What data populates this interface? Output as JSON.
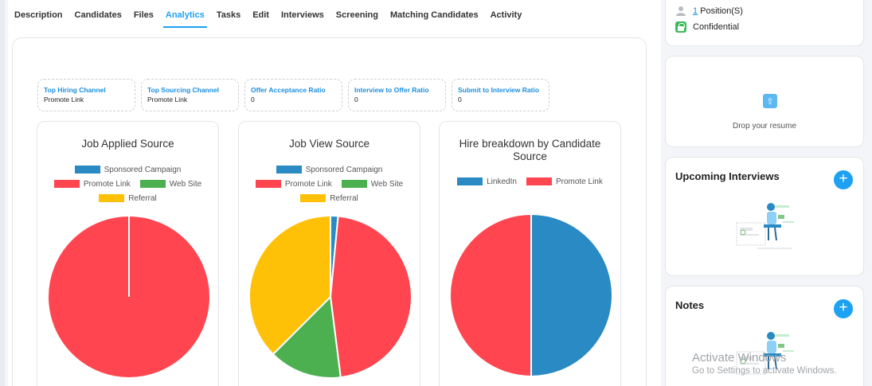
{
  "tabs": [
    {
      "label": "Description"
    },
    {
      "label": "Candidates"
    },
    {
      "label": "Files"
    },
    {
      "label": "Analytics"
    },
    {
      "label": "Tasks"
    },
    {
      "label": "Edit"
    },
    {
      "label": "Interviews"
    },
    {
      "label": "Screening"
    },
    {
      "label": "Matching Candidates"
    },
    {
      "label": "Activity"
    }
  ],
  "active_tab": "Analytics",
  "metrics": [
    {
      "label": "Top Hiring Channel",
      "value": "Promote Link"
    },
    {
      "label": "Top Sourcing Channel",
      "value": "Promote Link"
    },
    {
      "label": "Offer Acceptance Ratio",
      "value": "0"
    },
    {
      "label": "Interview to Offer Ratio",
      "value": "0"
    },
    {
      "label": "Submit to Interview Ratio",
      "value": "0"
    }
  ],
  "sidebar": {
    "position_count": "1",
    "position_label": "Position(S)",
    "confidential_label": "Confidential",
    "drop_resume_label": "Drop your resume",
    "upcoming_interviews_title": "Upcoming Interviews",
    "notes_title": "Notes",
    "add_label": "+"
  },
  "watermark": {
    "line1": "Activate Windows",
    "line2": "Go to Settings to activate Windows."
  },
  "colors": {
    "accent": "#1da1f2",
    "sponsored": "#2a8ac4",
    "promote": "#ff4650",
    "website": "#4cb050",
    "referral": "#ffc107",
    "linkedin": "#2a8ac4"
  },
  "chart_data": [
    {
      "type": "pie",
      "title": "Job Applied Source",
      "legend": [
        "Sponsored Campaign",
        "Promote Link",
        "Web Site",
        "Referral"
      ],
      "slices": [
        {
          "label": "Sponsored Campaign",
          "value": 0,
          "color": "#2a8ac4"
        },
        {
          "label": "Promote Link",
          "value": 100,
          "color": "#ff4650"
        },
        {
          "label": "Web Site",
          "value": 0,
          "color": "#4cb050"
        },
        {
          "label": "Referral",
          "value": 0,
          "color": "#ffc107"
        }
      ]
    },
    {
      "type": "pie",
      "title": "Job View Source",
      "legend": [
        "Sponsored Campaign",
        "Promote Link",
        "Web Site",
        "Referral"
      ],
      "slices": [
        {
          "label": "Sponsored Campaign",
          "value": 1.5,
          "color": "#2a8ac4"
        },
        {
          "label": "Promote Link",
          "value": 46.5,
          "color": "#ff4650"
        },
        {
          "label": "Web Site",
          "value": 14.5,
          "color": "#4cb050"
        },
        {
          "label": "Referral",
          "value": 37.5,
          "color": "#ffc107"
        }
      ]
    },
    {
      "type": "pie",
      "title": "Hire breakdown by Candidate Source",
      "legend": [
        "LinkedIn",
        "Promote Link"
      ],
      "slices": [
        {
          "label": "LinkedIn",
          "value": 50,
          "color": "#2a8ac4"
        },
        {
          "label": "Promote Link",
          "value": 50,
          "color": "#ff4650"
        }
      ]
    }
  ]
}
